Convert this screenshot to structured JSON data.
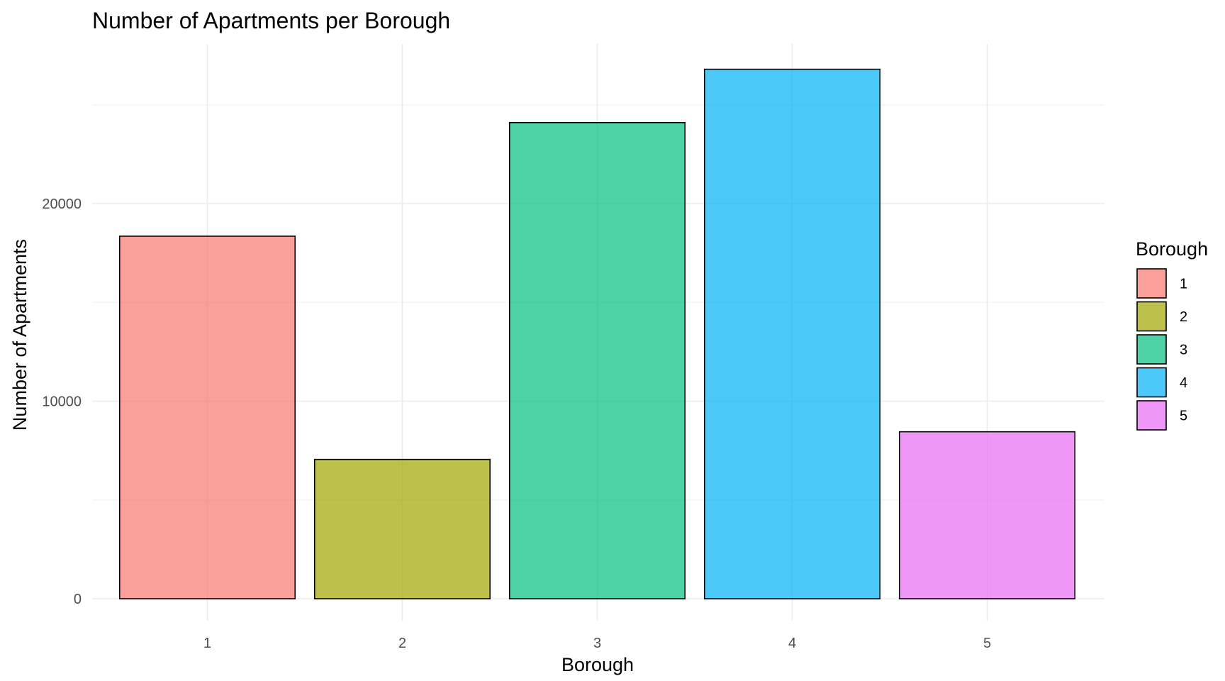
{
  "chart_data": {
    "type": "bar",
    "title": "Number of Apartments per Borough",
    "xlabel": "Borough",
    "ylabel": "Number of Apartments",
    "categories": [
      "1",
      "2",
      "3",
      "4",
      "5"
    ],
    "values": [
      18350,
      7050,
      24100,
      26800,
      8450
    ],
    "colors": [
      "#F8766D",
      "#A3A500",
      "#00BF7D",
      "#00B0F6",
      "#E76BF3"
    ],
    "bar_opacity": 0.7,
    "ylim": [
      0,
      27000
    ],
    "y_ticks": [
      0,
      10000,
      20000
    ],
    "y_minor_ticks": [
      5000,
      15000,
      25000
    ],
    "grid": true,
    "legend": {
      "title": "Borough",
      "placement": "right",
      "entries": [
        "1",
        "2",
        "3",
        "4",
        "5"
      ]
    }
  }
}
